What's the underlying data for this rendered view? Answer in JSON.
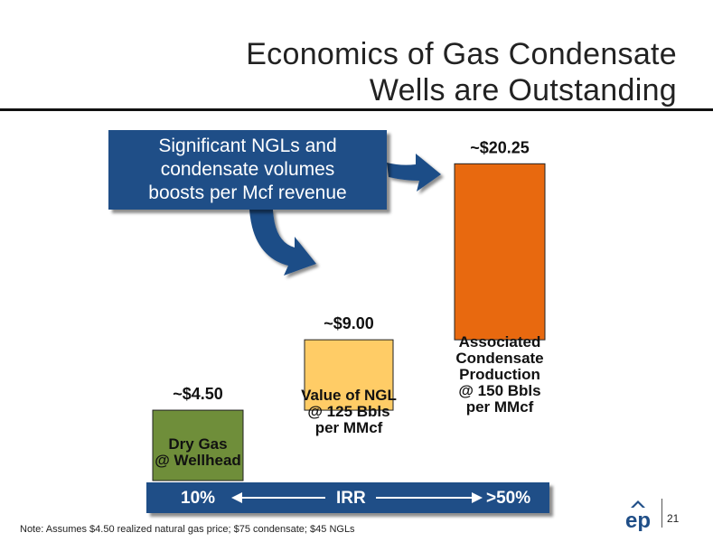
{
  "slide": {
    "title_line1": "Economics of Gas Condensate",
    "title_line2": "Wells are Outstanding",
    "callout_line1": "Significant NGLs and",
    "callout_line2": "condensate volumes",
    "callout_line3": "boosts per Mcf revenue",
    "footnote": "Note: Assumes $4.50 realized natural gas price; $75 condensate; $45 NGLs",
    "page_number": "21",
    "logo_text": "ep"
  },
  "irr": {
    "low": "10%",
    "label": "IRR",
    "high": ">50%"
  },
  "chart_data": {
    "type": "bar",
    "title": "",
    "xlabel": "",
    "ylabel": "",
    "ylim": [
      0,
      22
    ],
    "categories": [
      [
        "Dry Gas",
        "@ Wellhead"
      ],
      [
        "Value of NGL",
        "@ 125 Bbls",
        "per MMcf"
      ],
      [
        "Associated",
        "Condensate",
        "Production",
        "@ 150 Bbls",
        "per MMcf"
      ]
    ],
    "value_labels": [
      "~$4.50",
      "~$9.00",
      "~$20.25"
    ],
    "bars": [
      {
        "base": 0,
        "value": 4.5,
        "color": "#6f8e3a"
      },
      {
        "base": 4.5,
        "value": 9.0,
        "color": "#ffcc66"
      },
      {
        "base": 9.0,
        "value": 20.25,
        "color": "#e8690f"
      }
    ]
  }
}
